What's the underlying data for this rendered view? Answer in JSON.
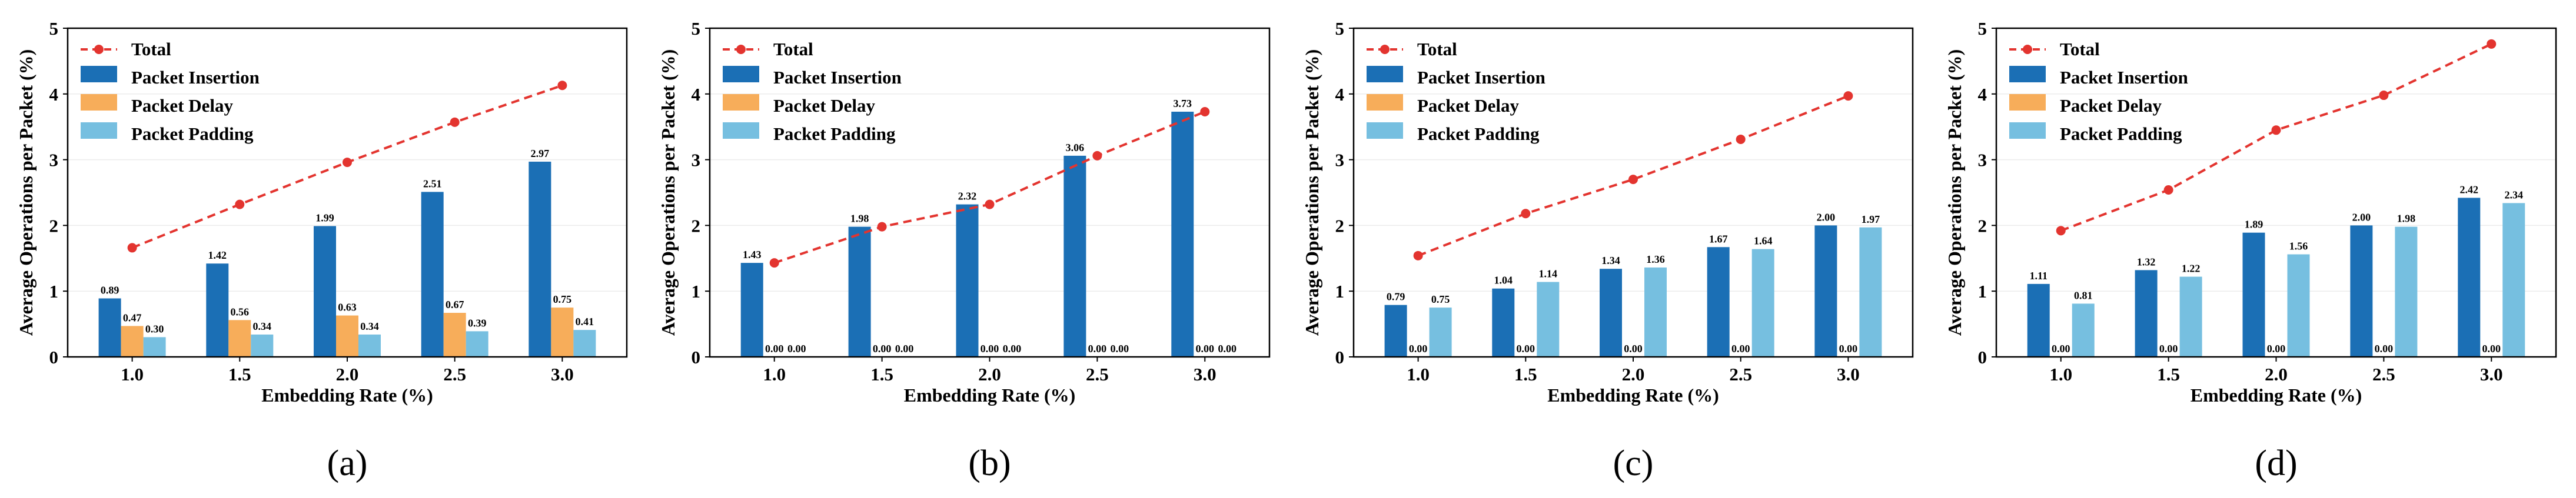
{
  "chart_data": [
    {
      "type": "bar",
      "panel_label": "(a)",
      "categories": [
        "1.0",
        "1.5",
        "2.0",
        "2.5",
        "3.0"
      ],
      "xlabel": "Embedding Rate (%)",
      "ylabel": "Average Operations per Packet (%)",
      "ylim": [
        0,
        5
      ],
      "yticks": [
        "0",
        "1",
        "2",
        "3",
        "4",
        "5"
      ],
      "legend_position": "top-left",
      "series": [
        {
          "name": "Packet Insertion",
          "values": [
            0.89,
            1.42,
            1.99,
            2.51,
            2.97
          ],
          "labels": [
            "0.89",
            "1.42",
            "1.99",
            "2.51",
            "2.97"
          ]
        },
        {
          "name": "Packet Delay",
          "values": [
            0.47,
            0.56,
            0.63,
            0.67,
            0.75
          ],
          "labels": [
            "0.47",
            "0.56",
            "0.63",
            "0.67",
            "0.75"
          ]
        },
        {
          "name": "Packet Padding",
          "values": [
            0.3,
            0.34,
            0.34,
            0.39,
            0.41
          ],
          "labels": [
            "0.30",
            "0.34",
            "0.34",
            "0.39",
            "0.41"
          ]
        }
      ],
      "total": {
        "name": "Total",
        "values": [
          1.66,
          2.32,
          2.96,
          3.57,
          4.13
        ]
      }
    },
    {
      "type": "bar",
      "panel_label": "(b)",
      "categories": [
        "1.0",
        "1.5",
        "2.0",
        "2.5",
        "3.0"
      ],
      "xlabel": "Embedding Rate (%)",
      "ylabel": "Average Operations per Packet (%)",
      "ylim": [
        0,
        5
      ],
      "yticks": [
        "0",
        "1",
        "2",
        "3",
        "4",
        "5"
      ],
      "legend_position": "top-left",
      "series": [
        {
          "name": "Packet Insertion",
          "values": [
            1.43,
            1.98,
            2.32,
            3.06,
            3.73
          ],
          "labels": [
            "1.43",
            "1.98",
            "2.32",
            "3.06",
            "3.73"
          ]
        },
        {
          "name": "Packet Delay",
          "values": [
            0.0,
            0.0,
            0.0,
            0.0,
            0.0
          ],
          "labels": [
            "0.00",
            "0.00",
            "0.00",
            "0.00",
            "0.00"
          ]
        },
        {
          "name": "Packet Padding",
          "values": [
            0.0,
            0.0,
            0.0,
            0.0,
            0.0
          ],
          "labels": [
            "0.00",
            "0.00",
            "0.00",
            "0.00",
            "0.00"
          ]
        }
      ],
      "total": {
        "name": "Total",
        "values": [
          1.43,
          1.98,
          2.32,
          3.06,
          3.73
        ]
      }
    },
    {
      "type": "bar",
      "panel_label": "(c)",
      "categories": [
        "1.0",
        "1.5",
        "2.0",
        "2.5",
        "3.0"
      ],
      "xlabel": "Embedding Rate (%)",
      "ylabel": "Average Operations per Packet (%)",
      "ylim": [
        0,
        5
      ],
      "yticks": [
        "0",
        "1",
        "2",
        "3",
        "4",
        "5"
      ],
      "legend_position": "top-left",
      "series": [
        {
          "name": "Packet Insertion",
          "values": [
            0.79,
            1.04,
            1.34,
            1.67,
            2.0
          ],
          "labels": [
            "0.79",
            "1.04",
            "1.34",
            "1.67",
            "2.00"
          ]
        },
        {
          "name": "Packet Delay",
          "values": [
            0.0,
            0.0,
            0.0,
            0.0,
            0.0
          ],
          "labels": [
            "0.00",
            "0.00",
            "0.00",
            "0.00",
            "0.00"
          ]
        },
        {
          "name": "Packet Padding",
          "values": [
            0.75,
            1.14,
            1.36,
            1.64,
            1.97
          ],
          "labels": [
            "0.75",
            "1.14",
            "1.36",
            "1.64",
            "1.97"
          ]
        }
      ],
      "total": {
        "name": "Total",
        "values": [
          1.54,
          2.18,
          2.7,
          3.31,
          3.97
        ]
      }
    },
    {
      "type": "bar",
      "panel_label": "(d)",
      "categories": [
        "1.0",
        "1.5",
        "2.0",
        "2.5",
        "3.0"
      ],
      "xlabel": "Embedding Rate (%)",
      "ylabel": "Average Operations per Packet (%)",
      "ylim": [
        0,
        5
      ],
      "yticks": [
        "0",
        "1",
        "2",
        "3",
        "4",
        "5"
      ],
      "legend_position": "top-left",
      "series": [
        {
          "name": "Packet Insertion",
          "values": [
            1.11,
            1.32,
            1.89,
            2.0,
            2.42
          ],
          "labels": [
            "1.11",
            "1.32",
            "1.89",
            "2.00",
            "2.42"
          ]
        },
        {
          "name": "Packet Delay",
          "values": [
            0.0,
            0.0,
            0.0,
            0.0,
            0.0
          ],
          "labels": [
            "0.00",
            "0.00",
            "0.00",
            "0.00",
            "0.00"
          ]
        },
        {
          "name": "Packet Padding",
          "values": [
            0.81,
            1.22,
            1.56,
            1.98,
            2.34
          ],
          "labels": [
            "0.81",
            "1.22",
            "1.56",
            "1.98",
            "2.34"
          ]
        }
      ],
      "total": {
        "name": "Total",
        "values": [
          1.92,
          2.54,
          3.45,
          3.98,
          4.76
        ]
      }
    }
  ],
  "colors": {
    "insertion": "#1b6fb5",
    "delay": "#f7ad5a",
    "padding": "#76bfe0",
    "total": "#e3342f",
    "grid": "#ececec"
  }
}
